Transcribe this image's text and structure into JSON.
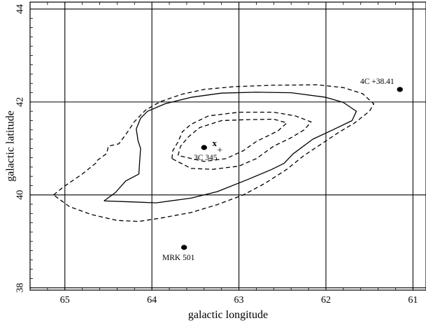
{
  "chart_data": {
    "type": "contour",
    "xlabel": "galactic longitude",
    "ylabel": "galactic latitude",
    "xlim": [
      65.4,
      60.85
    ],
    "ylim": [
      37.95,
      44.15
    ],
    "x_ticks": [
      65,
      64,
      63,
      62,
      61
    ],
    "y_ticks": [
      38,
      40,
      42,
      44
    ],
    "grid": true,
    "contours": [
      {
        "name": "outer-dashed",
        "style": "dashed",
        "points": [
          [
            65.13,
            40.0
          ],
          [
            65.01,
            40.18
          ],
          [
            64.8,
            40.45
          ],
          [
            64.64,
            40.69
          ],
          [
            64.63,
            40.74
          ],
          [
            64.52,
            40.89
          ],
          [
            64.5,
            41.05
          ],
          [
            64.38,
            41.1
          ],
          [
            64.3,
            41.3
          ],
          [
            64.2,
            41.58
          ],
          [
            64.07,
            41.83
          ],
          [
            63.9,
            42.01
          ],
          [
            63.65,
            42.17
          ],
          [
            63.4,
            42.27
          ],
          [
            63.05,
            42.33
          ],
          [
            62.6,
            42.36
          ],
          [
            62.1,
            42.37
          ],
          [
            61.8,
            42.31
          ],
          [
            61.58,
            42.18
          ],
          [
            61.45,
            41.96
          ],
          [
            61.5,
            41.8
          ],
          [
            61.67,
            41.55
          ],
          [
            61.85,
            41.35
          ],
          [
            62.05,
            41.1
          ],
          [
            62.25,
            40.85
          ],
          [
            62.45,
            40.55
          ],
          [
            62.7,
            40.25
          ],
          [
            62.95,
            40.0
          ],
          [
            63.25,
            39.79
          ],
          [
            63.55,
            39.62
          ],
          [
            63.9,
            39.5
          ],
          [
            64.15,
            39.43
          ],
          [
            64.4,
            39.45
          ],
          [
            64.7,
            39.58
          ],
          [
            64.95,
            39.75
          ],
          [
            65.13,
            40.0
          ]
        ]
      },
      {
        "name": "middle-solid",
        "style": "solid",
        "points": [
          [
            64.55,
            39.87
          ],
          [
            64.42,
            40.05
          ],
          [
            64.3,
            40.3
          ],
          [
            64.15,
            40.45
          ],
          [
            64.14,
            40.72
          ],
          [
            64.13,
            41.0
          ],
          [
            64.16,
            41.17
          ],
          [
            64.18,
            41.42
          ],
          [
            64.13,
            41.65
          ],
          [
            64.05,
            41.8
          ],
          [
            63.85,
            41.96
          ],
          [
            63.55,
            42.1
          ],
          [
            63.2,
            42.19
          ],
          [
            62.8,
            42.21
          ],
          [
            62.4,
            42.2
          ],
          [
            62.0,
            42.1
          ],
          [
            61.8,
            41.99
          ],
          [
            61.65,
            41.8
          ],
          [
            61.7,
            41.6
          ],
          [
            61.92,
            41.4
          ],
          [
            62.15,
            41.2
          ],
          [
            62.38,
            40.88
          ],
          [
            62.48,
            40.68
          ],
          [
            62.62,
            40.55
          ],
          [
            62.9,
            40.33
          ],
          [
            63.25,
            40.07
          ],
          [
            63.55,
            39.93
          ],
          [
            63.95,
            39.83
          ],
          [
            64.25,
            39.85
          ],
          [
            64.55,
            39.87
          ]
        ]
      },
      {
        "name": "inner-dashed-1",
        "style": "dashed",
        "points": [
          [
            63.77,
            40.78
          ],
          [
            63.76,
            40.95
          ],
          [
            63.7,
            41.14
          ],
          [
            63.65,
            41.36
          ],
          [
            63.55,
            41.52
          ],
          [
            63.35,
            41.7
          ],
          [
            63.0,
            41.78
          ],
          [
            62.6,
            41.78
          ],
          [
            62.35,
            41.7
          ],
          [
            62.17,
            41.57
          ],
          [
            62.25,
            41.4
          ],
          [
            62.4,
            41.23
          ],
          [
            62.6,
            41.05
          ],
          [
            62.8,
            40.78
          ],
          [
            63.0,
            40.62
          ],
          [
            63.3,
            40.55
          ],
          [
            63.55,
            40.57
          ],
          [
            63.77,
            40.78
          ]
        ]
      },
      {
        "name": "inner-dashed-2",
        "style": "dashed",
        "points": [
          [
            63.7,
            40.85
          ],
          [
            63.67,
            41.05
          ],
          [
            63.58,
            41.25
          ],
          [
            63.45,
            41.45
          ],
          [
            63.2,
            41.6
          ],
          [
            62.9,
            41.62
          ],
          [
            62.6,
            41.63
          ],
          [
            62.45,
            41.55
          ],
          [
            62.55,
            41.38
          ],
          [
            62.8,
            41.15
          ],
          [
            62.95,
            40.95
          ],
          [
            63.15,
            40.78
          ],
          [
            63.4,
            40.72
          ],
          [
            63.7,
            40.85
          ]
        ]
      }
    ],
    "sources": [
      {
        "label": "4C +38.41",
        "x": 61.15,
        "y": 42.27,
        "marker": "dot"
      },
      {
        "label": "3C 345",
        "x": 63.4,
        "y": 41.02,
        "marker": "dot"
      },
      {
        "label": "MRK 501",
        "x": 63.63,
        "y": 38.87,
        "marker": "dot"
      }
    ],
    "annotations": [
      {
        "text": "x",
        "x": 63.28,
        "y": 41.12
      },
      {
        "text": "+",
        "x": 63.22,
        "y": 40.95
      }
    ]
  }
}
